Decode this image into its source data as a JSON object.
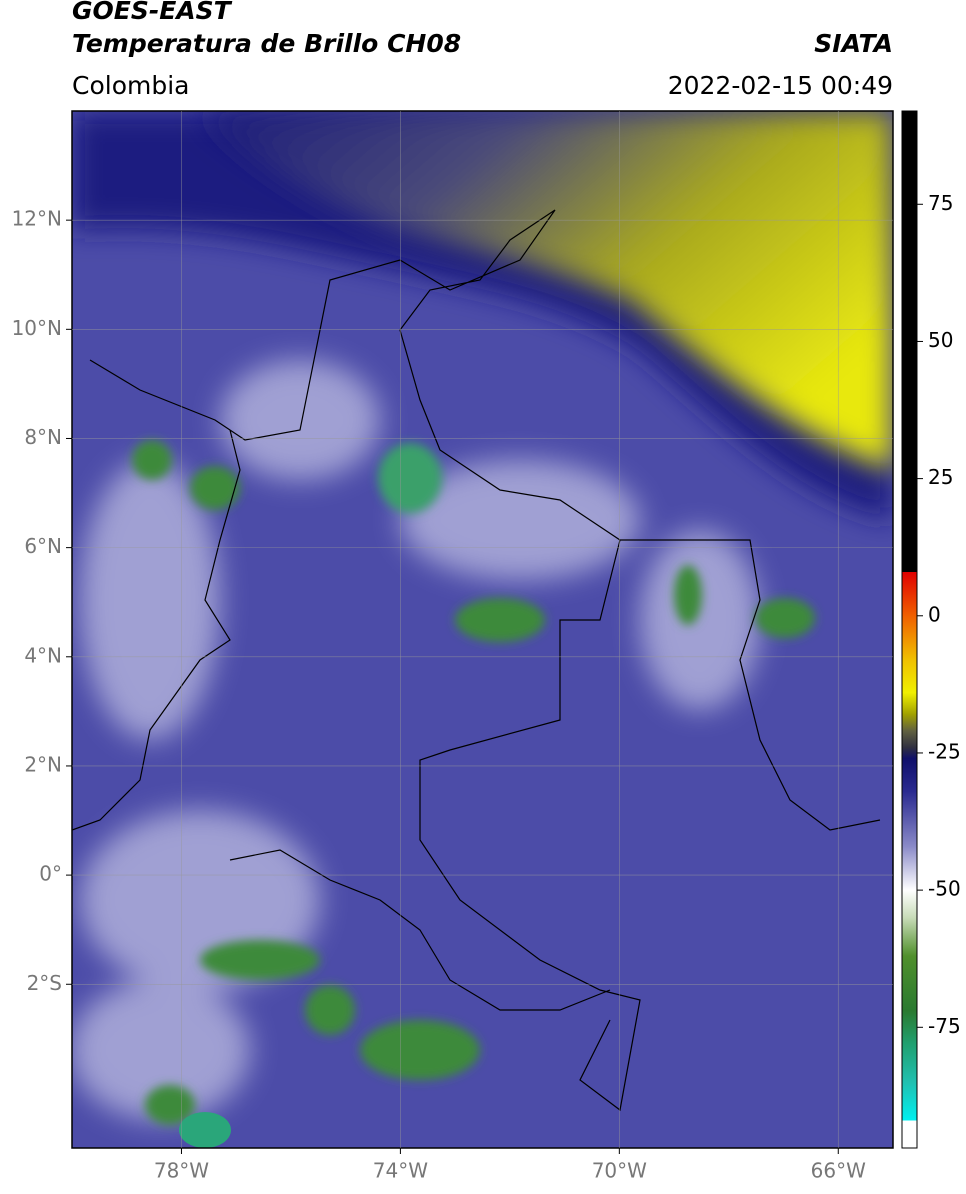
{
  "header": {
    "title": "GOES-EAST",
    "subtitle": "Temperatura de Brillo CH08",
    "source": "SIATA",
    "region": "Colombia",
    "timestamp": "2022-02-15 00:49"
  },
  "map": {
    "xlim": [
      -80,
      -65
    ],
    "ylim": [
      -5,
      14
    ],
    "xticks": [
      {
        "value": -78,
        "label": "78°W"
      },
      {
        "value": -74,
        "label": "74°W"
      },
      {
        "value": -70,
        "label": "70°W"
      },
      {
        "value": -66,
        "label": "66°W"
      }
    ],
    "yticks": [
      {
        "value": 12,
        "label": "12°N"
      },
      {
        "value": 10,
        "label": "10°N"
      },
      {
        "value": 8,
        "label": "8°N"
      },
      {
        "value": 6,
        "label": "6°N"
      },
      {
        "value": 4,
        "label": "4°N"
      },
      {
        "value": 2,
        "label": "2°N"
      },
      {
        "value": 0,
        "label": "0°"
      },
      {
        "value": -2,
        "label": "2°S"
      }
    ],
    "grid": true
  },
  "colorbar": {
    "lim": [
      -97,
      92
    ],
    "ticks": [
      75,
      50,
      25,
      0,
      -25,
      -50,
      -75
    ],
    "stops": [
      {
        "value": 92,
        "color": "#000000"
      },
      {
        "value": 8,
        "color": "#000000"
      },
      {
        "value": 8,
        "color": "#e00000"
      },
      {
        "value": 0,
        "color": "#f06000"
      },
      {
        "value": -8,
        "color": "#f0c000"
      },
      {
        "value": -14,
        "color": "#f0f000"
      },
      {
        "value": -18,
        "color": "#a0a000"
      },
      {
        "value": -21,
        "color": "#606040"
      },
      {
        "value": -24,
        "color": "#303040"
      },
      {
        "value": -26,
        "color": "#10106a"
      },
      {
        "value": -32,
        "color": "#2a2a90"
      },
      {
        "value": -42,
        "color": "#8a8ac8"
      },
      {
        "value": -50,
        "color": "#ffffff"
      },
      {
        "value": -55,
        "color": "#c8dcb8"
      },
      {
        "value": -62,
        "color": "#50902c"
      },
      {
        "value": -72,
        "color": "#2a7a30"
      },
      {
        "value": -78,
        "color": "#20a070"
      },
      {
        "value": -85,
        "color": "#20c0b0"
      },
      {
        "value": -92,
        "color": "#00f0f0"
      },
      {
        "value": -92,
        "color": "#ffffff"
      },
      {
        "value": -97,
        "color": "#ffffff"
      }
    ]
  }
}
